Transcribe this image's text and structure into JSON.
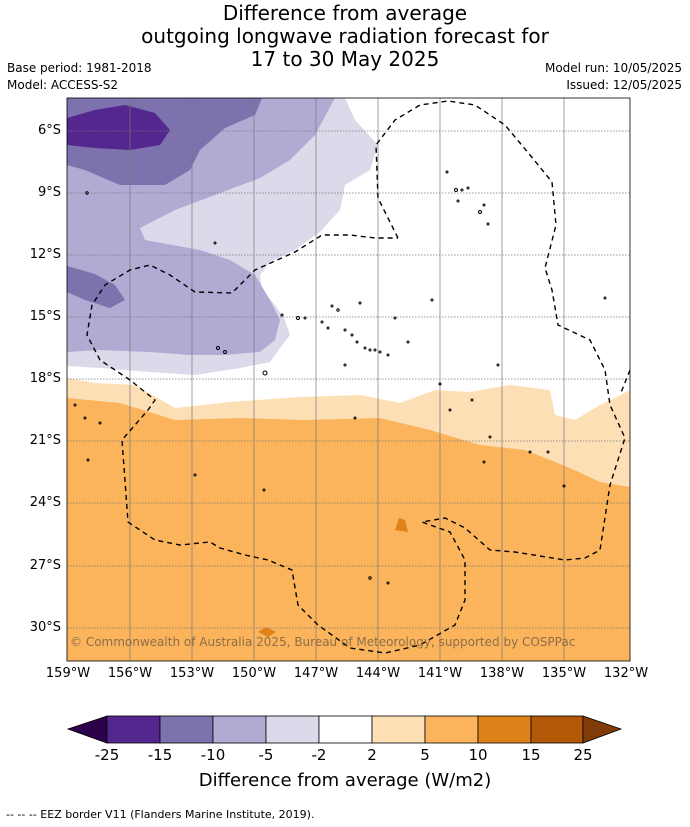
{
  "title": {
    "line1": "Difference from average",
    "line2": "outgoing longwave radiation forecast for",
    "line3": "17 to 30 May 2025"
  },
  "meta": {
    "base_period": "Base period: 1981-2018",
    "model": "Model: ACCESS-S2",
    "model_run": "Model run: 10/05/2025",
    "issued": "Issued: 12/05/2025"
  },
  "map": {
    "lat_labels": [
      "6°S",
      "9°S",
      "12°S",
      "15°S",
      "18°S",
      "21°S",
      "24°S",
      "27°S",
      "30°S"
    ],
    "lon_labels": [
      "159°W",
      "156°W",
      "153°W",
      "150°W",
      "147°W",
      "144°W",
      "141°W",
      "138°W",
      "135°W",
      "132°W"
    ],
    "copyright": "© Commonwealth of Australia 2025, Bureau of Meteorology, supported by COSPPac",
    "colors": {
      "lt_-15": "#54278f",
      "-15_-10": "#7d71ae",
      "-10_-5": "#b1abd3",
      "-5_-2": "#dadaeb",
      "-2_2": "#ffffff",
      "2_5": "#fddfb6",
      "5_10": "#fbb45c",
      "10_15": "#e0821a",
      "15_25": "#b35806",
      "gt_25": "#7f3b08"
    }
  },
  "colorbar": {
    "ticks": [
      "-25",
      "-15",
      "-10",
      "-5",
      "-2",
      "2",
      "5",
      "10",
      "15",
      "25"
    ],
    "label": "Difference from average (W/m2)"
  },
  "footer": "--  --  -- EEZ border V11 (Flanders Marine Institute, 2019)."
}
